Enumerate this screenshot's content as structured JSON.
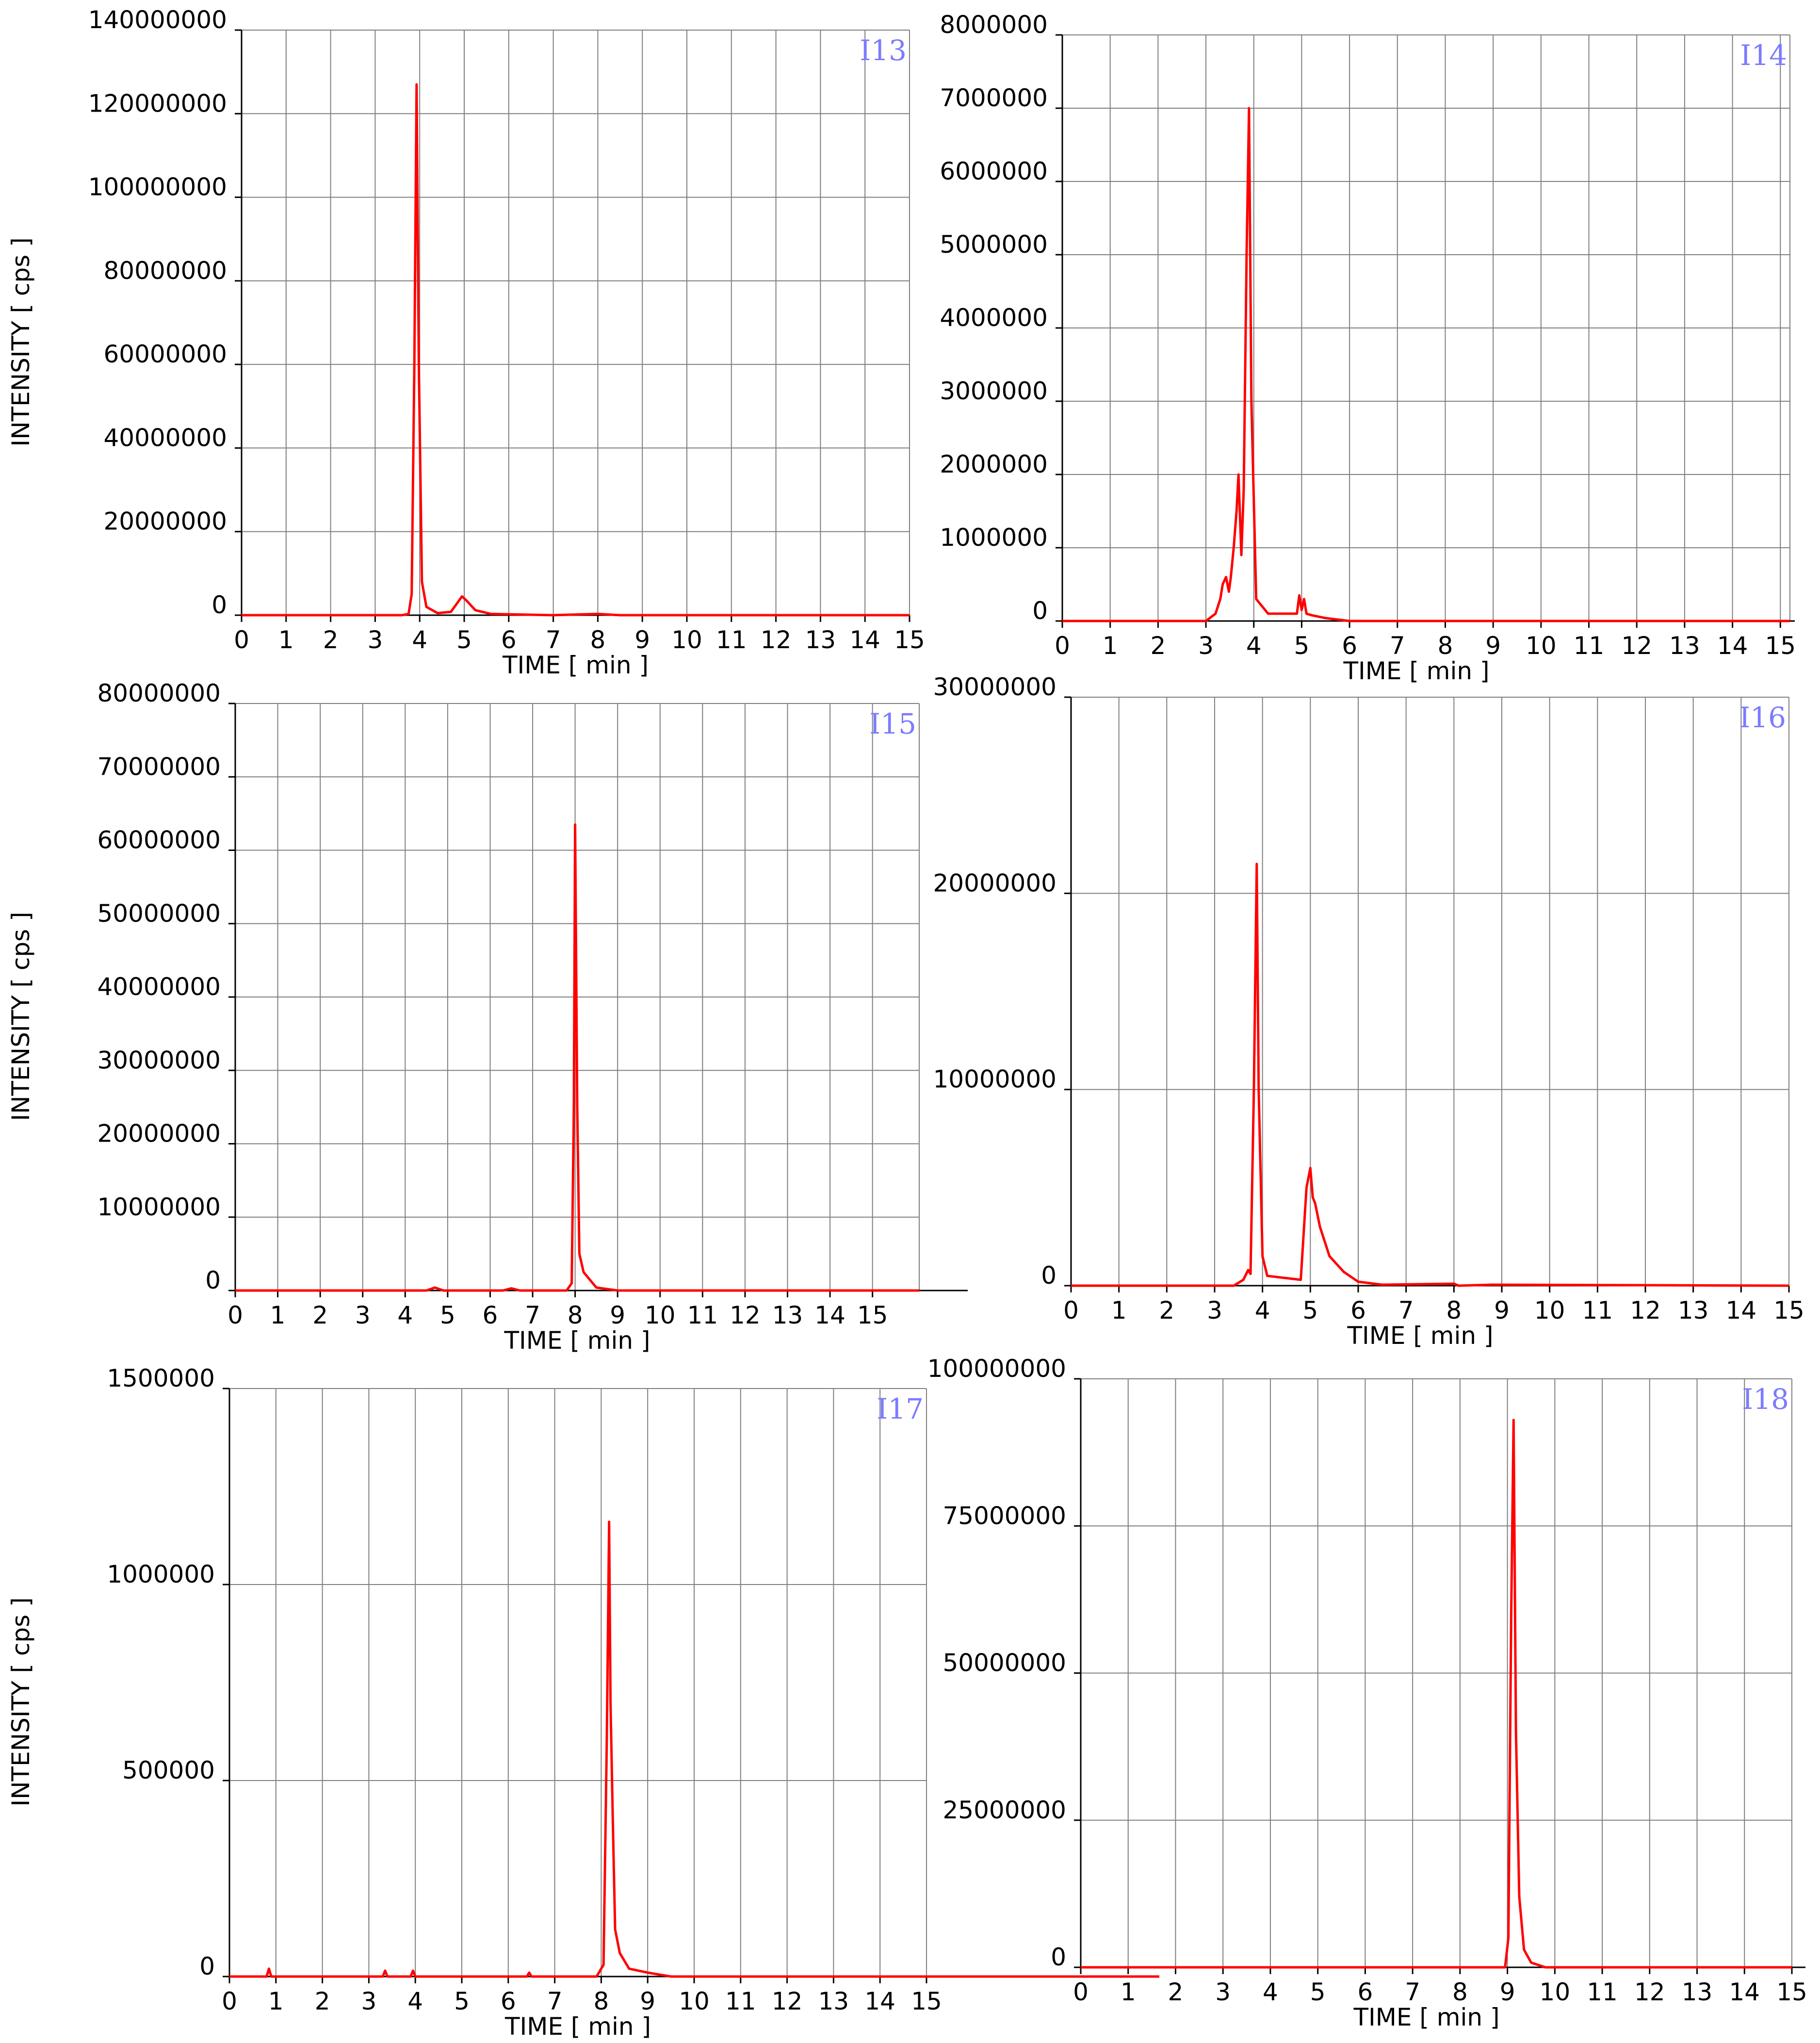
{
  "figure": {
    "colors": {
      "trace": "#ff0000",
      "grid": "#7f7f7f",
      "axis": "#000000",
      "panel_label": "#7b7bff"
    }
  },
  "chart_data": [
    {
      "type": "line",
      "panel_label": "I13",
      "xlabel": "TIME [ min ]",
      "ylabel": "INTENSITY [ cps ]",
      "xlim": [
        0,
        15
      ],
      "ylim": [
        0,
        140000000
      ],
      "x_ticks": [
        "0",
        "1",
        "2",
        "3",
        "4",
        "5",
        "6",
        "7",
        "8",
        "9",
        "10",
        "11",
        "12",
        "13",
        "14",
        "15"
      ],
      "y_ticks": [
        "0",
        "20000000",
        "40000000",
        "60000000",
        "80000000",
        "100000000",
        "120000000",
        "140000000"
      ],
      "grid": true,
      "series": [
        {
          "x": [
            0,
            3.6,
            3.75,
            3.82,
            3.88,
            3.93,
            3.98,
            4.05,
            4.15,
            4.4,
            4.7,
            4.85,
            4.95,
            5.05,
            5.25,
            5.6,
            7.0,
            8.0,
            8.5,
            10,
            15
          ],
          "y": [
            0,
            0,
            300000,
            5000000,
            60000000,
            127000000,
            60000000,
            8000000,
            2000000,
            500000,
            800000,
            3000000,
            4500000,
            3500000,
            1200000,
            300000,
            0,
            300000,
            0,
            0,
            0
          ]
        }
      ]
    },
    {
      "type": "line",
      "panel_label": "I14",
      "xlabel": "TIME [ min ]",
      "ylabel": "",
      "xlim": [
        0,
        15.2
      ],
      "ylim": [
        0,
        8000000
      ],
      "x_ticks": [
        "0",
        "1",
        "2",
        "3",
        "4",
        "5",
        "6",
        "7",
        "8",
        "9",
        "10",
        "11",
        "12",
        "13",
        "14",
        "15"
      ],
      "y_ticks": [
        "0",
        "1000000",
        "2000000",
        "3000000",
        "4000000",
        "5000000",
        "6000000",
        "7000000",
        "8000000"
      ],
      "grid": true,
      "series": [
        {
          "x": [
            0,
            3.0,
            3.2,
            3.3,
            3.35,
            3.42,
            3.48,
            3.52,
            3.58,
            3.64,
            3.68,
            3.74,
            3.79,
            3.85,
            3.9,
            3.95,
            4.05,
            4.3,
            4.9,
            4.95,
            5.0,
            5.05,
            5.1,
            5.2,
            5.5,
            6.0,
            15.2
          ],
          "y": [
            0,
            0,
            100000,
            300000,
            500000,
            600000,
            400000,
            600000,
            1000000,
            1500000,
            2000000,
            900000,
            1800000,
            5000000,
            7000000,
            3000000,
            300000,
            100000,
            100000,
            350000,
            150000,
            300000,
            100000,
            80000,
            40000,
            0,
            0
          ]
        }
      ]
    },
    {
      "type": "line",
      "panel_label": "I15",
      "xlabel": "TIME [ min ]",
      "ylabel": "INTENSITY [ cps ]",
      "xlim": [
        0,
        16.1
      ],
      "ylim": [
        0,
        80000000
      ],
      "x_ticks": [
        "0",
        "1",
        "2",
        "3",
        "4",
        "5",
        "6",
        "7",
        "8",
        "9",
        "10",
        "11",
        "12",
        "13",
        "14",
        "15"
      ],
      "y_ticks": [
        "0",
        "10000000",
        "20000000",
        "30000000",
        "40000000",
        "50000000",
        "60000000",
        "70000000",
        "80000000"
      ],
      "grid": true,
      "series": [
        {
          "x": [
            0,
            4.5,
            4.7,
            4.9,
            6.3,
            6.5,
            6.7,
            7.8,
            7.92,
            7.97,
            8.0,
            8.05,
            8.1,
            8.2,
            8.3,
            8.5,
            9.0,
            16.1
          ],
          "y": [
            0,
            0,
            400000,
            0,
            0,
            300000,
            0,
            0,
            1000000,
            25000000,
            63500000,
            25000000,
            5000000,
            2500000,
            1800000,
            400000,
            0,
            0
          ]
        }
      ]
    },
    {
      "type": "line",
      "panel_label": "I16",
      "xlabel": "TIME [ min ]",
      "ylabel": "",
      "xlim": [
        0,
        15
      ],
      "ylim": [
        0,
        30000000
      ],
      "x_ticks": [
        "0",
        "1",
        "2",
        "3",
        "4",
        "5",
        "6",
        "7",
        "8",
        "9",
        "10",
        "11",
        "12",
        "13",
        "14",
        "15"
      ],
      "y_ticks": [
        "0",
        "10000000",
        "20000000",
        "30000000"
      ],
      "grid": true,
      "series": [
        {
          "x": [
            0,
            3.4,
            3.6,
            3.7,
            3.75,
            3.82,
            3.88,
            3.92,
            4.0,
            4.1,
            4.8,
            4.92,
            5.0,
            5.05,
            5.1,
            5.2,
            5.4,
            5.7,
            6.0,
            6.5,
            8.0,
            8.1,
            8.8,
            15
          ],
          "y": [
            0,
            0,
            300000,
            800000,
            600000,
            10000000,
            21500000,
            10000000,
            1500000,
            500000,
            300000,
            5000000,
            6000000,
            4500000,
            4200000,
            3000000,
            1500000,
            700000,
            200000,
            50000,
            100000,
            0,
            50000,
            0
          ]
        }
      ]
    },
    {
      "type": "line",
      "panel_label": "I17",
      "xlabel": "TIME [ min ]",
      "ylabel": "INTENSITY [ cps ]",
      "xlim": [
        0,
        15
      ],
      "ylim": [
        0,
        1500000
      ],
      "x_ticks": [
        "0",
        "1",
        "2",
        "3",
        "4",
        "5",
        "6",
        "7",
        "8",
        "9",
        "10",
        "11",
        "12",
        "13",
        "14",
        "15"
      ],
      "y_ticks": [
        "0",
        "500000",
        "1000000",
        "1500000"
      ],
      "grid": true,
      "series": [
        {
          "x": [
            0,
            0.8,
            0.85,
            0.9,
            3.3,
            3.35,
            3.4,
            3.9,
            3.95,
            4.0,
            6.4,
            6.45,
            6.5,
            7.9,
            8.05,
            8.12,
            8.17,
            8.2,
            8.25,
            8.3,
            8.4,
            8.6,
            9.0,
            9.5,
            15,
            20.1
          ],
          "y": [
            0,
            0,
            20000,
            0,
            0,
            15000,
            0,
            0,
            15000,
            0,
            0,
            10000,
            0,
            0,
            30000,
            600000,
            1160000,
            700000,
            400000,
            120000,
            60000,
            20000,
            10000,
            0,
            0,
            0
          ]
        }
      ]
    },
    {
      "type": "line",
      "panel_label": "I18",
      "xlabel": "TIME [ min ]",
      "ylabel": "",
      "xlim": [
        0,
        15
      ],
      "ylim": [
        0,
        100000000
      ],
      "x_ticks": [
        "0",
        "1",
        "2",
        "3",
        "4",
        "5",
        "6",
        "7",
        "8",
        "9",
        "10",
        "11",
        "12",
        "13",
        "14",
        "15"
      ],
      "y_ticks": [
        "0",
        "25000000",
        "50000000",
        "75000000",
        "100000000"
      ],
      "grid": true,
      "series": [
        {
          "x": [
            0,
            8.95,
            9.02,
            9.08,
            9.13,
            9.18,
            9.25,
            9.35,
            9.5,
            9.8,
            15
          ],
          "y": [
            0,
            0,
            5000000,
            60000000,
            93000000,
            40000000,
            12000000,
            3000000,
            800000,
            0,
            0
          ]
        }
      ]
    }
  ]
}
